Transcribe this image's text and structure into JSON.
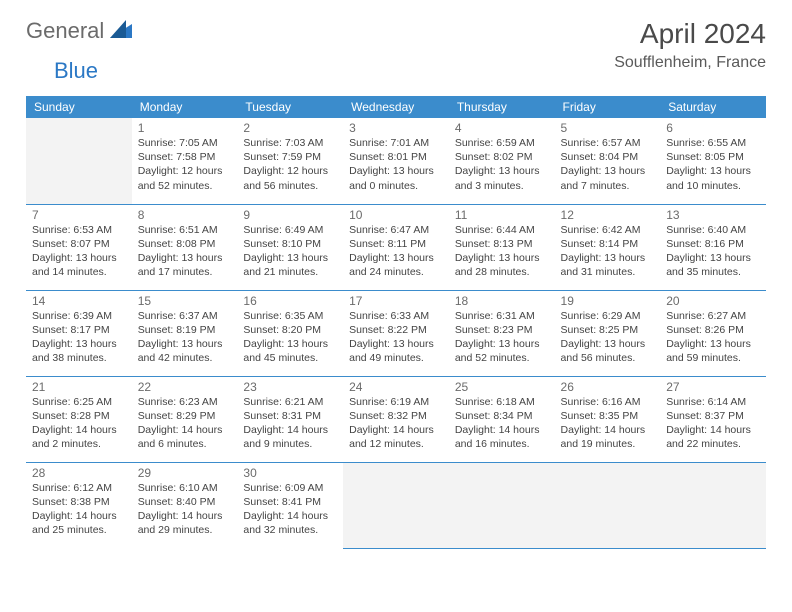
{
  "logo": {
    "general": "General",
    "blue": "Blue"
  },
  "header": {
    "title": "April 2024",
    "location": "Soufflenheim, France"
  },
  "weekdays": [
    "Sunday",
    "Monday",
    "Tuesday",
    "Wednesday",
    "Thursday",
    "Friday",
    "Saturday"
  ],
  "colors": {
    "header_bg": "#3b8ccc",
    "header_fg": "#ffffff",
    "logo_gray": "#6b6b6b",
    "logo_blue": "#2b78c5"
  },
  "grid": [
    [
      null,
      {
        "n": "1",
        "sunrise": "7:05 AM",
        "sunset": "7:58 PM",
        "daylight": "12 hours and 52 minutes."
      },
      {
        "n": "2",
        "sunrise": "7:03 AM",
        "sunset": "7:59 PM",
        "daylight": "12 hours and 56 minutes."
      },
      {
        "n": "3",
        "sunrise": "7:01 AM",
        "sunset": "8:01 PM",
        "daylight": "13 hours and 0 minutes."
      },
      {
        "n": "4",
        "sunrise": "6:59 AM",
        "sunset": "8:02 PM",
        "daylight": "13 hours and 3 minutes."
      },
      {
        "n": "5",
        "sunrise": "6:57 AM",
        "sunset": "8:04 PM",
        "daylight": "13 hours and 7 minutes."
      },
      {
        "n": "6",
        "sunrise": "6:55 AM",
        "sunset": "8:05 PM",
        "daylight": "13 hours and 10 minutes."
      }
    ],
    [
      {
        "n": "7",
        "sunrise": "6:53 AM",
        "sunset": "8:07 PM",
        "daylight": "13 hours and 14 minutes."
      },
      {
        "n": "8",
        "sunrise": "6:51 AM",
        "sunset": "8:08 PM",
        "daylight": "13 hours and 17 minutes."
      },
      {
        "n": "9",
        "sunrise": "6:49 AM",
        "sunset": "8:10 PM",
        "daylight": "13 hours and 21 minutes."
      },
      {
        "n": "10",
        "sunrise": "6:47 AM",
        "sunset": "8:11 PM",
        "daylight": "13 hours and 24 minutes."
      },
      {
        "n": "11",
        "sunrise": "6:44 AM",
        "sunset": "8:13 PM",
        "daylight": "13 hours and 28 minutes."
      },
      {
        "n": "12",
        "sunrise": "6:42 AM",
        "sunset": "8:14 PM",
        "daylight": "13 hours and 31 minutes."
      },
      {
        "n": "13",
        "sunrise": "6:40 AM",
        "sunset": "8:16 PM",
        "daylight": "13 hours and 35 minutes."
      }
    ],
    [
      {
        "n": "14",
        "sunrise": "6:39 AM",
        "sunset": "8:17 PM",
        "daylight": "13 hours and 38 minutes."
      },
      {
        "n": "15",
        "sunrise": "6:37 AM",
        "sunset": "8:19 PM",
        "daylight": "13 hours and 42 minutes."
      },
      {
        "n": "16",
        "sunrise": "6:35 AM",
        "sunset": "8:20 PM",
        "daylight": "13 hours and 45 minutes."
      },
      {
        "n": "17",
        "sunrise": "6:33 AM",
        "sunset": "8:22 PM",
        "daylight": "13 hours and 49 minutes."
      },
      {
        "n": "18",
        "sunrise": "6:31 AM",
        "sunset": "8:23 PM",
        "daylight": "13 hours and 52 minutes."
      },
      {
        "n": "19",
        "sunrise": "6:29 AM",
        "sunset": "8:25 PM",
        "daylight": "13 hours and 56 minutes."
      },
      {
        "n": "20",
        "sunrise": "6:27 AM",
        "sunset": "8:26 PM",
        "daylight": "13 hours and 59 minutes."
      }
    ],
    [
      {
        "n": "21",
        "sunrise": "6:25 AM",
        "sunset": "8:28 PM",
        "daylight": "14 hours and 2 minutes."
      },
      {
        "n": "22",
        "sunrise": "6:23 AM",
        "sunset": "8:29 PM",
        "daylight": "14 hours and 6 minutes."
      },
      {
        "n": "23",
        "sunrise": "6:21 AM",
        "sunset": "8:31 PM",
        "daylight": "14 hours and 9 minutes."
      },
      {
        "n": "24",
        "sunrise": "6:19 AM",
        "sunset": "8:32 PM",
        "daylight": "14 hours and 12 minutes."
      },
      {
        "n": "25",
        "sunrise": "6:18 AM",
        "sunset": "8:34 PM",
        "daylight": "14 hours and 16 minutes."
      },
      {
        "n": "26",
        "sunrise": "6:16 AM",
        "sunset": "8:35 PM",
        "daylight": "14 hours and 19 minutes."
      },
      {
        "n": "27",
        "sunrise": "6:14 AM",
        "sunset": "8:37 PM",
        "daylight": "14 hours and 22 minutes."
      }
    ],
    [
      {
        "n": "28",
        "sunrise": "6:12 AM",
        "sunset": "8:38 PM",
        "daylight": "14 hours and 25 minutes."
      },
      {
        "n": "29",
        "sunrise": "6:10 AM",
        "sunset": "8:40 PM",
        "daylight": "14 hours and 29 minutes."
      },
      {
        "n": "30",
        "sunrise": "6:09 AM",
        "sunset": "8:41 PM",
        "daylight": "14 hours and 32 minutes."
      },
      null,
      null,
      null,
      null
    ]
  ]
}
